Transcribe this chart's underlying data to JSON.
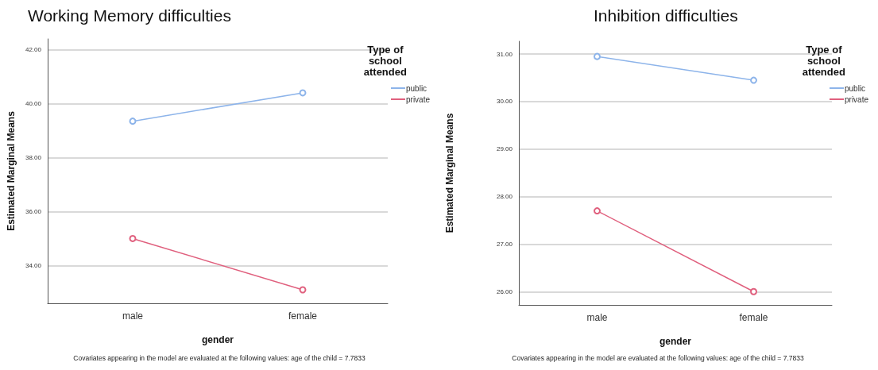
{
  "chart_data": [
    {
      "type": "line",
      "title": "Working Memory difficulties",
      "xlabel": "gender",
      "ylabel": "Estimated Marginal Means",
      "legend_title": "Type of school attended",
      "categories": [
        "male",
        "female"
      ],
      "series": [
        {
          "name": "public",
          "color": "#8db4ea",
          "values": [
            39.35,
            40.4
          ]
        },
        {
          "name": "private",
          "color": "#e0607e",
          "values": [
            35.0,
            33.1
          ]
        }
      ],
      "ylim": [
        32.6,
        42.4
      ],
      "yticks": [
        {
          "value": 34,
          "label": "34.00"
        },
        {
          "value": 36,
          "label": "36.00"
        },
        {
          "value": 38,
          "label": "38.00"
        },
        {
          "value": 40,
          "label": "40.00"
        },
        {
          "value": 42,
          "label": "42.00"
        }
      ],
      "grid": "y",
      "legend": "top right",
      "marker": "circle",
      "line_style": "solid",
      "annotations": [
        "Covariates appearing in the model are evaluated at the following values: age of the child = 7.7833"
      ]
    },
    {
      "type": "line",
      "title": "Inhibition difficulties",
      "xlabel": "gender",
      "ylabel": "Estimated Marginal Means",
      "legend_title": "Type of school attended",
      "categories": [
        "male",
        "female"
      ],
      "series": [
        {
          "name": "public",
          "color": "#8db4ea",
          "values": [
            30.95,
            30.45
          ]
        },
        {
          "name": "private",
          "color": "#e0607e",
          "values": [
            27.7,
            26.0
          ]
        }
      ],
      "ylim": [
        25.72,
        31.27
      ],
      "yticks": [
        {
          "value": 26,
          "label": "26.00"
        },
        {
          "value": 27,
          "label": "27.00"
        },
        {
          "value": 28,
          "label": "28.00"
        },
        {
          "value": 29,
          "label": "29.00"
        },
        {
          "value": 30,
          "label": "30.00"
        },
        {
          "value": 31,
          "label": "31.00"
        }
      ],
      "grid": "y",
      "legend": "top right",
      "marker": "circle",
      "line_style": "solid",
      "annotations": [
        "Covariates appearing in the model are evaluated at the following values: age of the child = 7.7833"
      ]
    }
  ]
}
